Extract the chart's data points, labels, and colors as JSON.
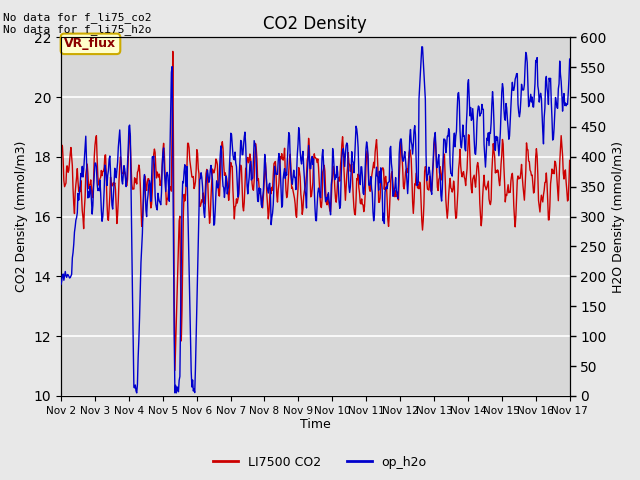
{
  "title": "CO2 Density",
  "xlabel": "Time",
  "ylabel_left": "CO2 Density (mmol/m3)",
  "ylabel_right": "H2O Density (mmol/m3)",
  "ylim_left": [
    10,
    22
  ],
  "ylim_right": [
    0,
    600
  ],
  "yticks_left": [
    10,
    12,
    14,
    16,
    18,
    20,
    22
  ],
  "yticks_right": [
    0,
    50,
    100,
    150,
    200,
    250,
    300,
    350,
    400,
    450,
    500,
    550,
    600
  ],
  "xtick_labels": [
    "Nov 2",
    "Nov 3",
    "Nov 4",
    "Nov 5",
    "Nov 6",
    "Nov 7",
    "Nov 8",
    "Nov 9",
    "Nov 10",
    "Nov 11",
    "Nov 12",
    "Nov 13",
    "Nov 14",
    "Nov 15",
    "Nov 16",
    "Nov 17"
  ],
  "annotation_text": "No data for f_li75_co2\nNo data for f_li75_h2o",
  "vr_flux_label": "VR_flux",
  "legend_labels": [
    "LI7500 CO2",
    "op_h2o"
  ],
  "co2_color": "#CC0000",
  "h2o_color": "#0000CC",
  "fig_bg_color": "#E8E8E8",
  "plot_bg_color": "#D8D8D8",
  "grid_color": "#FFFFFF",
  "vr_flux_facecolor": "#FFFFCC",
  "vr_flux_edgecolor": "#CCAA00",
  "linewidth": 1.0
}
